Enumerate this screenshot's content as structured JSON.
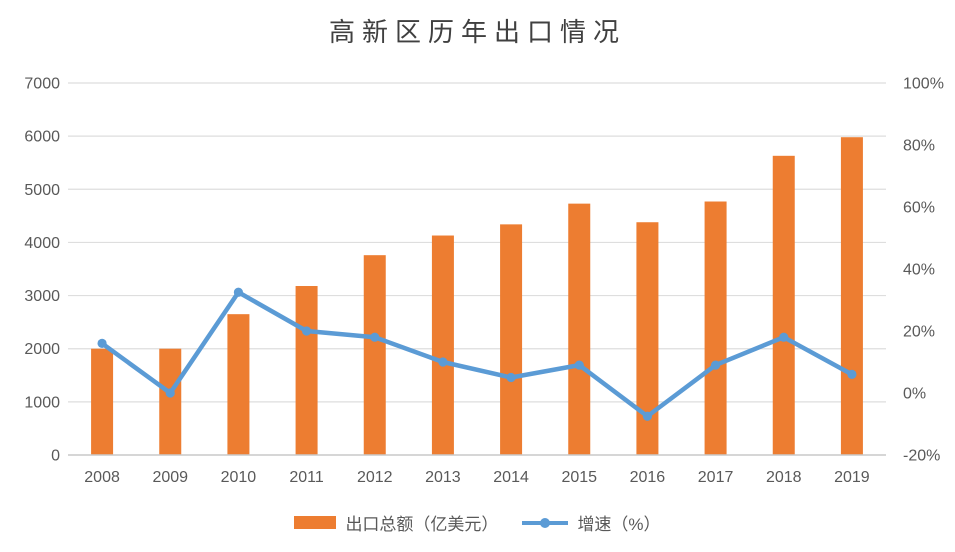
{
  "chart_data": {
    "type": "bar",
    "combo_types": [
      "bar",
      "line"
    ],
    "title": "高新区历年出口情况",
    "categories": [
      "2008",
      "2009",
      "2010",
      "2011",
      "2012",
      "2013",
      "2014",
      "2015",
      "2016",
      "2017",
      "2018",
      "2019"
    ],
    "series": [
      {
        "name": "出口总额（亿美元）",
        "type": "bar",
        "axis": "left",
        "color": "#ED7D31",
        "values": [
          2000,
          2000,
          2650,
          3180,
          3760,
          4130,
          4340,
          4730,
          4380,
          4770,
          5630,
          5980
        ]
      },
      {
        "name": "增速（%）",
        "type": "line",
        "axis": "right",
        "color": "#5B9BD5",
        "values": [
          16,
          0,
          32.5,
          20,
          18,
          10,
          5,
          9,
          -7.5,
          9,
          18,
          6
        ]
      }
    ],
    "left_axis": {
      "min": 0,
      "max": 7000,
      "step": 1000,
      "tick_labels": [
        "0",
        "1000",
        "2000",
        "3000",
        "4000",
        "5000",
        "6000",
        "7000"
      ]
    },
    "right_axis": {
      "min": -20,
      "max": 100,
      "step": 20,
      "tick_labels": [
        "-20%",
        "0%",
        "20%",
        "40%",
        "60%",
        "80%",
        "100%"
      ]
    },
    "grid": true,
    "legend_position": "bottom"
  },
  "styles": {
    "bar_color": "#ED7D31",
    "line_color": "#5B9BD5",
    "grid_color": "#DEDEDE",
    "axis_line_color": "#C9C9C9",
    "tick_text_color": "#595959",
    "title_color": "#404040",
    "background": "#FFFFFF"
  }
}
